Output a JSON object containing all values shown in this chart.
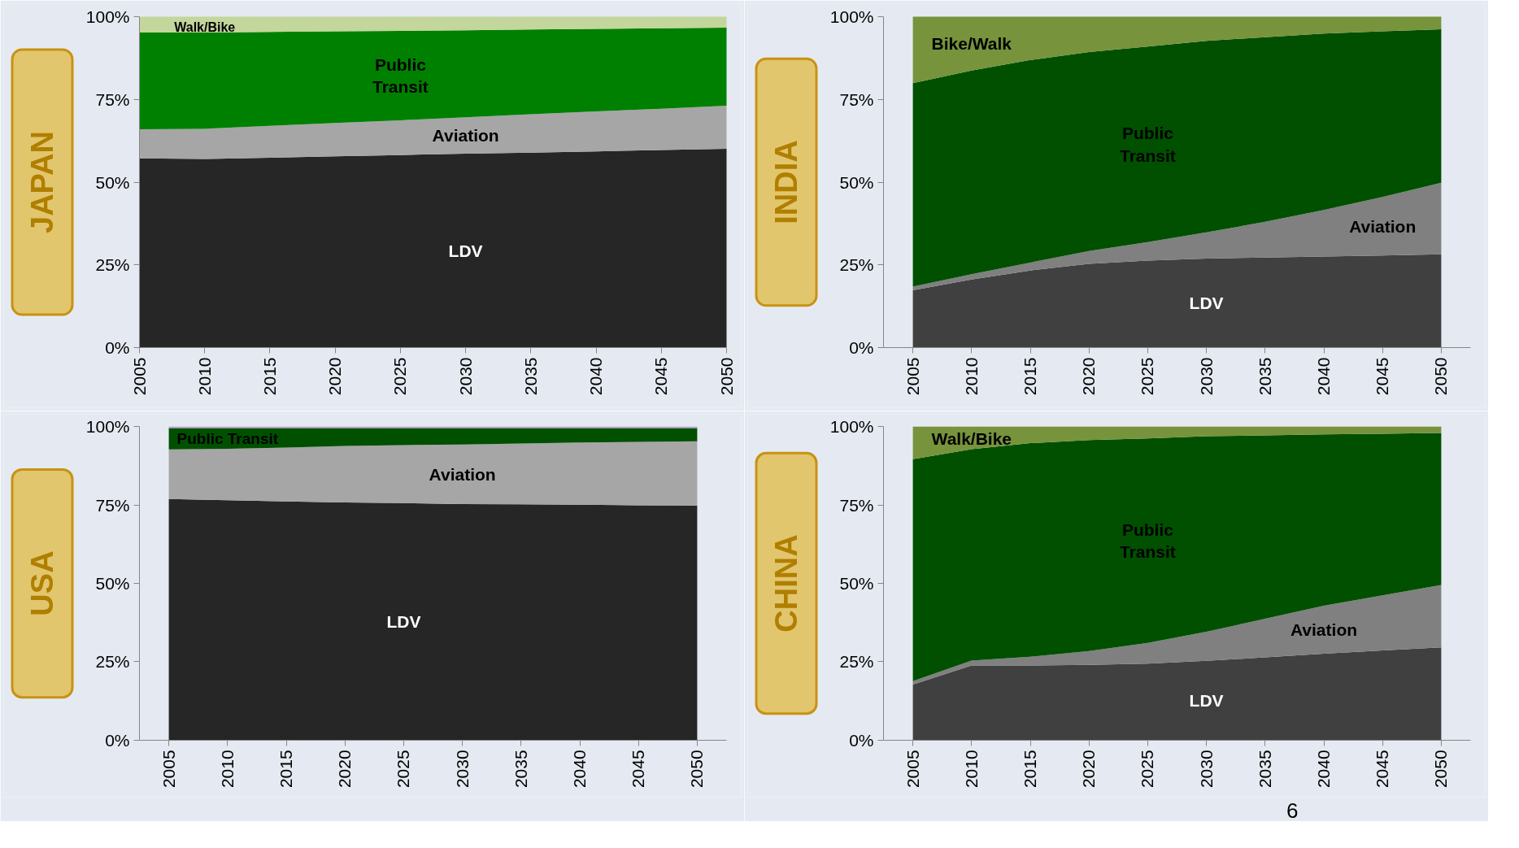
{
  "chart_data": [
    {
      "type": "area",
      "stacked": true,
      "title": "JAPAN",
      "x": [
        2005,
        2010,
        2015,
        2020,
        2025,
        2030,
        2035,
        2040,
        2045,
        2050
      ],
      "xlim": [
        2005,
        2050
      ],
      "xticks": [
        2005,
        2010,
        2015,
        2020,
        2025,
        2030,
        2035,
        2040,
        2045,
        2050
      ],
      "ylim": [
        0,
        100
      ],
      "yticks": [
        {
          "value": 0,
          "label": "0%"
        },
        {
          "value": 25,
          "label": "25%"
        },
        {
          "value": 50,
          "label": "50%"
        },
        {
          "value": 75,
          "label": "75%"
        },
        {
          "value": 100,
          "label": "100%"
        }
      ],
      "series": [
        {
          "name": "LDV",
          "color": "#262626",
          "values": [
            57.2,
            57.0,
            57.4,
            57.8,
            58.2,
            58.6,
            58.9,
            59.3,
            59.7,
            60.1
          ]
        },
        {
          "name": "Aviation",
          "color": "#a6a6a6",
          "values": [
            8.8,
            9.1,
            9.6,
            10.1,
            10.5,
            11.0,
            11.6,
            12.1,
            12.5,
            13.0
          ]
        },
        {
          "name": "Public Transit",
          "color": "#008000",
          "values": [
            29.2,
            29.1,
            28.4,
            27.7,
            27.0,
            26.3,
            25.6,
            24.9,
            24.3,
            23.6
          ]
        },
        {
          "name": "Walk/Bike",
          "color": "#c3d69b",
          "values": [
            4.8,
            4.8,
            4.6,
            4.4,
            4.3,
            4.1,
            3.9,
            3.7,
            3.5,
            3.3
          ]
        }
      ]
    },
    {
      "type": "area",
      "stacked": true,
      "title": "INDIA",
      "x": [
        2005,
        2010,
        2015,
        2020,
        2025,
        2030,
        2035,
        2040,
        2045,
        2050
      ],
      "xlim": [
        2002.5,
        2052.5
      ],
      "xticks": [
        2005,
        2010,
        2015,
        2020,
        2025,
        2030,
        2035,
        2040,
        2045,
        2050
      ],
      "ylim": [
        0,
        100
      ],
      "yticks": [
        {
          "value": 0,
          "label": "0%"
        },
        {
          "value": 25,
          "label": "25%"
        },
        {
          "value": 50,
          "label": "50%"
        },
        {
          "value": 75,
          "label": "75%"
        },
        {
          "value": 100,
          "label": "100%"
        }
      ],
      "series": [
        {
          "name": "LDV",
          "color": "#404040",
          "values": [
            17.3,
            20.6,
            23.3,
            25.3,
            26.3,
            26.9,
            27.2,
            27.5,
            27.8,
            28.2
          ]
        },
        {
          "name": "Aviation",
          "color": "#808080",
          "values": [
            1.1,
            1.6,
            2.4,
            3.9,
            5.6,
            7.9,
            10.8,
            14.1,
            17.7,
            21.6
          ]
        },
        {
          "name": "Public Transit",
          "color": "#005000",
          "values": [
            61.5,
            61.5,
            61.2,
            60.1,
            59.1,
            57.9,
            55.8,
            53.3,
            50.1,
            46.4
          ]
        },
        {
          "name": "Bike/Walk",
          "color": "#77933c",
          "values": [
            20.1,
            16.3,
            13.1,
            10.7,
            9.0,
            7.3,
            6.2,
            5.1,
            4.4,
            3.8
          ]
        }
      ]
    },
    {
      "type": "area",
      "stacked": true,
      "title": "USA",
      "x": [
        2005,
        2010,
        2015,
        2020,
        2025,
        2030,
        2035,
        2040,
        2045,
        2050
      ],
      "xlim": [
        2002.5,
        2052.5
      ],
      "xticks": [
        2005,
        2010,
        2015,
        2020,
        2025,
        2030,
        2035,
        2040,
        2045,
        2050
      ],
      "ylim": [
        0,
        100
      ],
      "yticks": [
        {
          "value": 0,
          "label": "0%"
        },
        {
          "value": 25,
          "label": "25%"
        },
        {
          "value": 50,
          "label": "50%"
        },
        {
          "value": 75,
          "label": "75%"
        },
        {
          "value": 100,
          "label": "100%"
        }
      ],
      "series": [
        {
          "name": "LDV",
          "color": "#262626",
          "values": [
            76.9,
            76.5,
            76.1,
            75.8,
            75.6,
            75.3,
            75.2,
            75.1,
            74.9,
            74.8
          ]
        },
        {
          "name": "Aviation",
          "color": "#a6a6a6",
          "values": [
            15.8,
            16.4,
            17.2,
            18.0,
            18.5,
            19.0,
            19.4,
            19.8,
            20.2,
            20.5
          ]
        },
        {
          "name": "Public Transit",
          "color": "#005000",
          "values": [
            6.8,
            6.6,
            6.2,
            5.7,
            5.4,
            5.2,
            4.9,
            4.6,
            4.4,
            4.2
          ]
        },
        {
          "color": "#b3a2c7",
          "values": [
            0.5,
            0.5,
            0.5,
            0.5,
            0.5,
            0.5,
            0.5,
            0.5,
            0.5,
            0.5
          ]
        }
      ]
    },
    {
      "type": "area",
      "stacked": true,
      "title": "CHINA",
      "x": [
        2005,
        2010,
        2015,
        2020,
        2025,
        2030,
        2035,
        2040,
        2045,
        2050
      ],
      "xlim": [
        2002.5,
        2052.5
      ],
      "xticks": [
        2005,
        2010,
        2015,
        2020,
        2025,
        2030,
        2035,
        2040,
        2045,
        2050
      ],
      "ylim": [
        0,
        100
      ],
      "yticks": [
        {
          "value": 0,
          "label": "0%"
        },
        {
          "value": 25,
          "label": "25%"
        },
        {
          "value": 50,
          "label": "50%"
        },
        {
          "value": 75,
          "label": "75%"
        },
        {
          "value": 100,
          "label": "100%"
        }
      ],
      "series": [
        {
          "name": "LDV",
          "color": "#404040",
          "values": [
            17.7,
            23.8,
            23.8,
            24.0,
            24.4,
            25.3,
            26.4,
            27.6,
            28.6,
            29.6
          ]
        },
        {
          "name": "Aviation",
          "color": "#808080",
          "values": [
            1.1,
            1.6,
            2.8,
            4.4,
            6.6,
            9.3,
            12.3,
            15.3,
            17.6,
            19.9
          ]
        },
        {
          "name": "Public Transit",
          "color": "#005000",
          "values": [
            70.8,
            67.4,
            68.1,
            67.3,
            65.2,
            62.3,
            58.5,
            54.6,
            51.5,
            48.5
          ]
        },
        {
          "name": "Walk/Bike",
          "color": "#77933c",
          "values": [
            10.4,
            7.2,
            5.3,
            4.3,
            3.8,
            3.1,
            2.8,
            2.5,
            2.3,
            2.0
          ]
        }
      ],
      "annotations": [
        "6"
      ]
    }
  ]
}
